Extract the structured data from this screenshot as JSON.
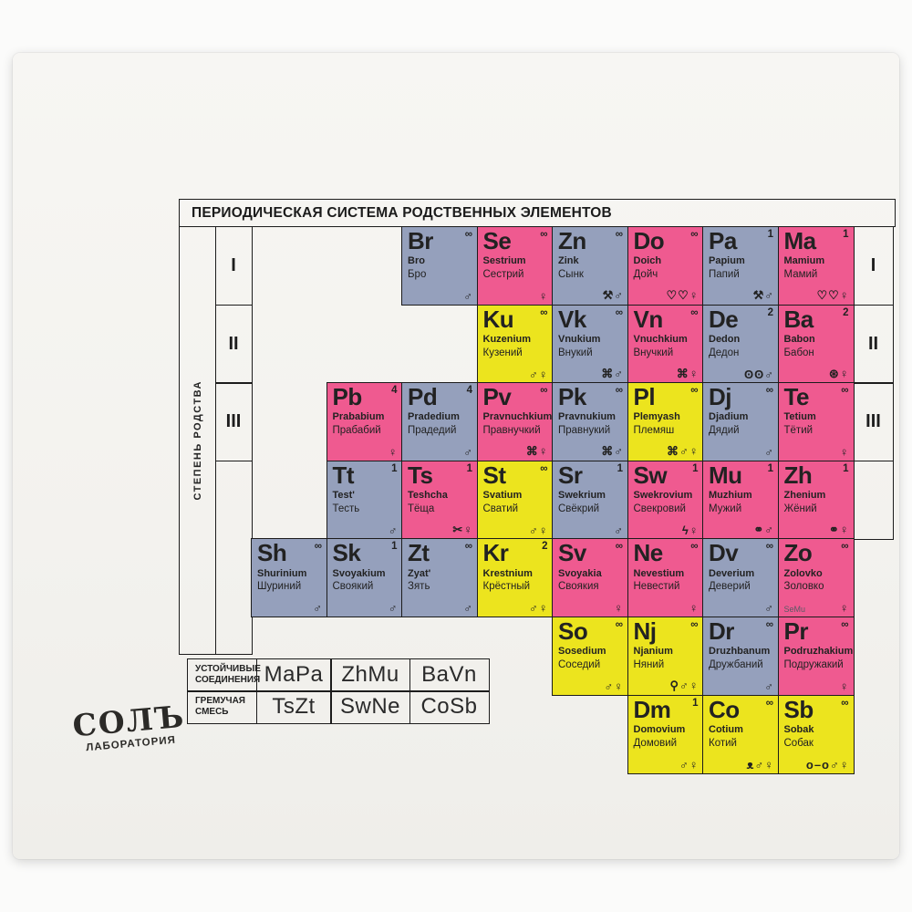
{
  "title": "ПЕРИОДИЧЕСКАЯ СИСТЕМА РОДСТВЕННЫХ ЭЛЕМЕНТОВ",
  "side_label": "СТЕПЕНЬ РОДСТВА",
  "degrees": [
    "I",
    "II",
    "III"
  ],
  "logo": {
    "line1": "СОЛЪ",
    "line2": "ЛАБОРАТОРИЯ"
  },
  "colors": {
    "pink": "#ef5a90",
    "blue": "#95a0bc",
    "yellow": "#ece41e",
    "card": "#f4f3f0",
    "line": "#1c1c1c"
  },
  "icon_glyphs": {
    "male": "♂",
    "female": "♀",
    "tools": "⚒",
    "hearts": "♡♡",
    "pretzel": "⌘",
    "glasses": "ʘʘ",
    "yarn": "⊛",
    "scissors": "✂",
    "lightning": "ϟ",
    "rings": "⚭",
    "pacifier": "⚲",
    "mouse": "ᴥ",
    "bone": "o–o"
  },
  "legend_rows": [
    {
      "label": "УСТОЙЧИВЫЕ СОЕДИНЕНИЯ",
      "formulas": [
        "MaPa",
        "ZhMu",
        "BaVn"
      ]
    },
    {
      "label": "ГРЕМУЧАЯ СМЕСЬ",
      "formulas": [
        "TsZt",
        "SwNe",
        "CoSb"
      ]
    }
  ],
  "elements": [
    {
      "sym": "Br",
      "lat": "Bro",
      "cyr": "Бро",
      "num": "∞",
      "color": "blue",
      "icons": [
        "male"
      ],
      "row": 1,
      "col": 3
    },
    {
      "sym": "Se",
      "lat": "Sestrium",
      "cyr": "Сестрий",
      "num": "∞",
      "color": "pink",
      "icons": [
        "female"
      ],
      "row": 1,
      "col": 4
    },
    {
      "sym": "Zn",
      "lat": "Zink",
      "cyr": "Сынк",
      "num": "∞",
      "color": "blue",
      "icons": [
        "tools",
        "male"
      ],
      "row": 1,
      "col": 5
    },
    {
      "sym": "Do",
      "lat": "Doich",
      "cyr": "Дойч",
      "num": "∞",
      "color": "pink",
      "icons": [
        "hearts",
        "female"
      ],
      "row": 1,
      "col": 6
    },
    {
      "sym": "Pa",
      "lat": "Papium",
      "cyr": "Папий",
      "num": "1",
      "color": "blue",
      "icons": [
        "tools",
        "male"
      ],
      "row": 1,
      "col": 7
    },
    {
      "sym": "Ma",
      "lat": "Mamium",
      "cyr": "Мамий",
      "num": "1",
      "color": "pink",
      "icons": [
        "hearts",
        "female"
      ],
      "row": 1,
      "col": 8
    },
    {
      "sym": "Ku",
      "lat": "Kuzenium",
      "cyr": "Кузений",
      "num": "∞",
      "color": "yellow",
      "icons": [
        "male",
        "female"
      ],
      "row": 2,
      "col": 4
    },
    {
      "sym": "Vk",
      "lat": "Vnukium",
      "cyr": "Внукий",
      "num": "∞",
      "color": "blue",
      "icons": [
        "pretzel",
        "male"
      ],
      "row": 2,
      "col": 5
    },
    {
      "sym": "Vn",
      "lat": "Vnuchkium",
      "cyr": "Внучкий",
      "num": "∞",
      "color": "pink",
      "icons": [
        "pretzel",
        "female"
      ],
      "row": 2,
      "col": 6
    },
    {
      "sym": "De",
      "lat": "Dedon",
      "cyr": "Дедон",
      "num": "2",
      "color": "blue",
      "icons": [
        "glasses",
        "male"
      ],
      "row": 2,
      "col": 7
    },
    {
      "sym": "Ba",
      "lat": "Babon",
      "cyr": "Бабон",
      "num": "2",
      "color": "pink",
      "icons": [
        "yarn",
        "female"
      ],
      "row": 2,
      "col": 8
    },
    {
      "sym": "Pb",
      "lat": "Prababium",
      "cyr": "Прабабий",
      "num": "4",
      "color": "pink",
      "icons": [
        "female"
      ],
      "row": 3,
      "col": 2
    },
    {
      "sym": "Pd",
      "lat": "Pradedium",
      "cyr": "Прадедий",
      "num": "4",
      "color": "blue",
      "icons": [
        "male"
      ],
      "row": 3,
      "col": 3
    },
    {
      "sym": "Pv",
      "lat": "Pravnuchkium",
      "cyr": "Правнучкий",
      "num": "∞",
      "color": "pink",
      "icons": [
        "pretzel",
        "female"
      ],
      "row": 3,
      "col": 4
    },
    {
      "sym": "Pk",
      "lat": "Pravnukium",
      "cyr": "Правнукий",
      "num": "∞",
      "color": "blue",
      "icons": [
        "pretzel",
        "male"
      ],
      "row": 3,
      "col": 5
    },
    {
      "sym": "Pl",
      "lat": "Plemyash",
      "cyr": "Племяш",
      "num": "∞",
      "color": "yellow",
      "icons": [
        "pretzel",
        "male",
        "female"
      ],
      "row": 3,
      "col": 6
    },
    {
      "sym": "Dj",
      "lat": "Djadium",
      "cyr": "Дядий",
      "num": "∞",
      "color": "blue",
      "icons": [
        "male"
      ],
      "row": 3,
      "col": 7
    },
    {
      "sym": "Te",
      "lat": "Tetium",
      "cyr": "Тётий",
      "num": "∞",
      "color": "pink",
      "icons": [
        "female"
      ],
      "row": 3,
      "col": 8
    },
    {
      "sym": "Tt",
      "lat": "Test'",
      "cyr": "Тесть",
      "num": "1",
      "color": "blue",
      "icons": [
        "male"
      ],
      "row": 4,
      "col": 2
    },
    {
      "sym": "Ts",
      "lat": "Teshcha",
      "cyr": "Тёща",
      "num": "1",
      "color": "pink",
      "icons": [
        "scissors",
        "female"
      ],
      "row": 4,
      "col": 3
    },
    {
      "sym": "St",
      "lat": "Svatium",
      "cyr": "Сватий",
      "num": "∞",
      "color": "yellow",
      "icons": [
        "male",
        "female"
      ],
      "row": 4,
      "col": 4
    },
    {
      "sym": "Sr",
      "lat": "Swekrium",
      "cyr": "Свёкрий",
      "num": "1",
      "color": "blue",
      "icons": [
        "male"
      ],
      "row": 4,
      "col": 5
    },
    {
      "sym": "Sw",
      "lat": "Swekrovium",
      "cyr": "Свекровий",
      "num": "1",
      "color": "pink",
      "icons": [
        "lightning",
        "female"
      ],
      "row": 4,
      "col": 6
    },
    {
      "sym": "Mu",
      "lat": "Muzhium",
      "cyr": "Мужий",
      "num": "1",
      "color": "pink",
      "icons": [
        "rings",
        "male"
      ],
      "row": 4,
      "col": 7
    },
    {
      "sym": "Zh",
      "lat": "Zhenium",
      "cyr": "Жёний",
      "num": "1",
      "color": "pink",
      "icons": [
        "rings",
        "female"
      ],
      "row": 4,
      "col": 8
    },
    {
      "sym": "Sh",
      "lat": "Shurinium",
      "cyr": "Шуриний",
      "num": "∞",
      "color": "blue",
      "icons": [
        "male"
      ],
      "row": 5,
      "col": 1
    },
    {
      "sym": "Sk",
      "lat": "Svoyakium",
      "cyr": "Своякий",
      "num": "1",
      "color": "blue",
      "icons": [
        "male"
      ],
      "row": 5,
      "col": 2
    },
    {
      "sym": "Zt",
      "lat": "Zyat'",
      "cyr": "Зять",
      "num": "∞",
      "color": "blue",
      "icons": [
        "male"
      ],
      "row": 5,
      "col": 3
    },
    {
      "sym": "Kr",
      "lat": "Krestnium",
      "cyr": "Крёстный",
      "num": "2",
      "color": "yellow",
      "icons": [
        "male",
        "female"
      ],
      "row": 5,
      "col": 4
    },
    {
      "sym": "Sv",
      "lat": "Svoyakia",
      "cyr": "Своякия",
      "num": "∞",
      "color": "pink",
      "icons": [
        "female"
      ],
      "row": 5,
      "col": 5
    },
    {
      "sym": "Ne",
      "lat": "Nevestium",
      "cyr": "Невестий",
      "num": "∞",
      "color": "pink",
      "icons": [
        "female"
      ],
      "row": 5,
      "col": 6
    },
    {
      "sym": "Dv",
      "lat": "Deverium",
      "cyr": "Деверий",
      "num": "∞",
      "color": "blue",
      "icons": [
        "male"
      ],
      "row": 5,
      "col": 7
    },
    {
      "sym": "Zo",
      "lat": "Zolovko",
      "cyr": "Золовко",
      "num": "∞",
      "color": "pink",
      "icons": [
        "female"
      ],
      "note": "SeMu",
      "row": 5,
      "col": 8
    },
    {
      "sym": "So",
      "lat": "Sosedium",
      "cyr": "Соседий",
      "num": "∞",
      "color": "yellow",
      "icons": [
        "male",
        "female"
      ],
      "row": 6,
      "col": 5
    },
    {
      "sym": "Nj",
      "lat": "Njanium",
      "cyr": "Няний",
      "num": "∞",
      "color": "yellow",
      "icons": [
        "pacifier",
        "male",
        "female"
      ],
      "row": 6,
      "col": 6
    },
    {
      "sym": "Dr",
      "lat": "Druzhbanum",
      "cyr": "Дружбаний",
      "num": "∞",
      "color": "blue",
      "icons": [
        "male"
      ],
      "row": 6,
      "col": 7
    },
    {
      "sym": "Pr",
      "lat": "Podruzhakium",
      "cyr": "Подружакий",
      "num": "∞",
      "color": "pink",
      "icons": [
        "female"
      ],
      "row": 6,
      "col": 8
    },
    {
      "sym": "Dm",
      "lat": "Domovium",
      "cyr": "Домовий",
      "num": "1",
      "color": "yellow",
      "icons": [
        "male",
        "female"
      ],
      "row": 7,
      "col": 6
    },
    {
      "sym": "Co",
      "lat": "Cotium",
      "cyr": "Котий",
      "num": "∞",
      "color": "yellow",
      "icons": [
        "mouse",
        "male",
        "female"
      ],
      "row": 7,
      "col": 7
    },
    {
      "sym": "Sb",
      "lat": "Sobak",
      "cyr": "Собак",
      "num": "∞",
      "color": "yellow",
      "icons": [
        "bone",
        "male",
        "female"
      ],
      "row": 7,
      "col": 8
    }
  ]
}
